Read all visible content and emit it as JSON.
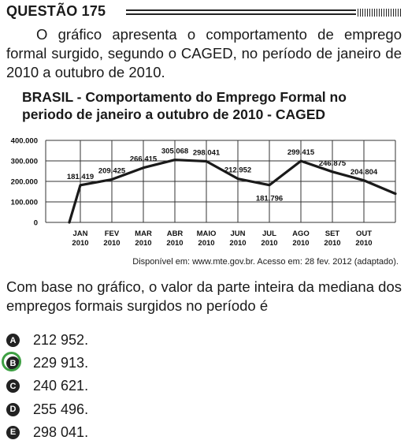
{
  "question": {
    "number_label": "QUESTÃO 175",
    "intro": "O gráfico apresenta o comportamento de emprego formal surgido, segundo o CAGED, no período de janeiro de 2010 a outubro de 2010.",
    "prompt": "Com base no gráfico, o valor da parte inteira da mediana dos empregos formais surgidos no período é"
  },
  "chart_data": {
    "type": "line",
    "title": "BRASIL - Comportamento do Emprego Formal no periodo de janeiro a outubro de 2010 - CAGED",
    "categories": [
      "JAN 2010",
      "FEV 2010",
      "MAR 2010",
      "ABR 2010",
      "MAIO 2010",
      "JUN 2010",
      "JUL 2010",
      "AGO 2010",
      "SET 2010",
      "OUT 2010"
    ],
    "category_labels": [
      [
        "JAN",
        "2010"
      ],
      [
        "FEV",
        "2010"
      ],
      [
        "MAR",
        "2010"
      ],
      [
        "ABR",
        "2010"
      ],
      [
        "MAIO",
        "2010"
      ],
      [
        "JUN",
        "2010"
      ],
      [
        "JUL",
        "2010"
      ],
      [
        "AGO",
        "2010"
      ],
      [
        "SET",
        "2010"
      ],
      [
        "OUT",
        "2010"
      ]
    ],
    "values": [
      181419,
      209425,
      266415,
      305068,
      298041,
      212952,
      181796,
      299415,
      246875,
      204804
    ],
    "value_labels": [
      "181.419",
      "209.425",
      "266.415",
      "305.068",
      "298.041",
      "212.952",
      "181.796",
      "299.415",
      "246.875",
      "204.804"
    ],
    "start_value": 0,
    "end_value": 140000,
    "ylim": [
      0,
      400000
    ],
    "yticks": [
      0,
      100000,
      200000,
      300000,
      400000
    ],
    "ytick_labels": [
      "0",
      "100.000",
      "200.000",
      "300.000",
      "400.000"
    ],
    "grid": true,
    "source": "Disponível em: www.mte.gov.br. Acesso em: 28 fev. 2012 (adaptado)."
  },
  "options": [
    {
      "letter": "A",
      "text": "212 952."
    },
    {
      "letter": "B",
      "text": "229 913.",
      "marked": true
    },
    {
      "letter": "C",
      "text": "240 621."
    },
    {
      "letter": "D",
      "text": "255 496."
    },
    {
      "letter": "E",
      "text": "298 041."
    }
  ],
  "colors": {
    "marker_ring": "#3ea043",
    "ink": "#1a1a1a"
  }
}
